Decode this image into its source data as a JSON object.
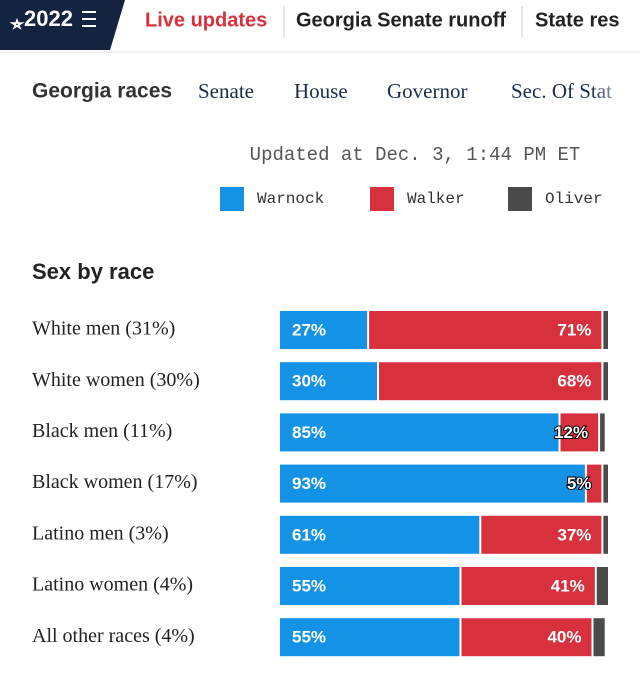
{
  "header": {
    "logo": "2022",
    "links": [
      "Live updates",
      "Georgia Senate runoff",
      "State res"
    ]
  },
  "subnav": {
    "title": "Georgia races",
    "links": [
      "Senate",
      "House",
      "Governor",
      "Sec. Of Stat"
    ]
  },
  "updated": "Updated at Dec. 3, 1:44 PM ET",
  "chart_data": {
    "type": "bar",
    "orientation": "horizontal",
    "stacked": true,
    "title": "Sex by race",
    "categories": [
      "White men (31%)",
      "White women (30%)",
      "Black men (11%)",
      "Black women (17%)",
      "Latino men (3%)",
      "Latino women (4%)",
      "All other races (4%)"
    ],
    "xlim": [
      0,
      100
    ],
    "legend": "top",
    "series": [
      {
        "name": "Warnock",
        "color": "#1493e6",
        "values": [
          27,
          30,
          85,
          93,
          61,
          55,
          55
        ],
        "value_labels": [
          "27%",
          "30%",
          "85%",
          "93%",
          "61%",
          "55%",
          "55%"
        ]
      },
      {
        "name": "Walker",
        "color": "#d7313d",
        "values": [
          71,
          68,
          12,
          5,
          37,
          41,
          40
        ],
        "value_labels": [
          "71%",
          "68%",
          "12%",
          "5%",
          "37%",
          "41%",
          "40%"
        ]
      },
      {
        "name": "Oliver",
        "color": "#4a4a4a",
        "values": [
          2,
          2,
          2,
          2,
          2,
          4,
          4
        ]
      }
    ]
  }
}
